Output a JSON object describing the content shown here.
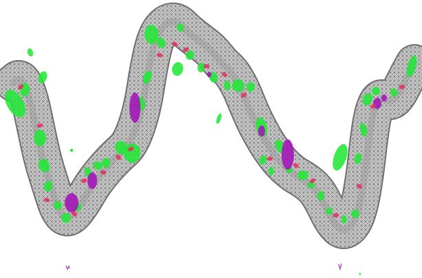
{
  "figure": {
    "background": "#ffffff",
    "colors": {
      "mesh": "#8f8f8f",
      "mesh_outline": "#5e5e5e",
      "positive_density": "#22e838",
      "negative_density": "#a316b8",
      "backbone_atoms": "#e2305f"
    }
  }
}
